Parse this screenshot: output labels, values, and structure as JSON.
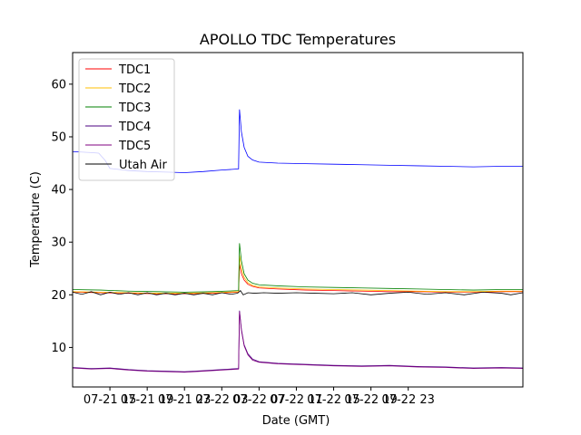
{
  "chart_data": {
    "type": "line",
    "title": "APOLLO TDC Temperatures",
    "xlabel": "Date (GMT)",
    "ylabel": "Temperature (C)",
    "xlim": [
      11.0,
      59.3
    ],
    "ylim": [
      2.5,
      66.0
    ],
    "x_unit": "hours since 07-21 00 GMT",
    "x_ticks": [
      {
        "x": 15,
        "label": "07-21 15"
      },
      {
        "x": 19,
        "label": "07-21 19"
      },
      {
        "x": 23,
        "label": "07-21 23"
      },
      {
        "x": 27,
        "label": "07-22 03"
      },
      {
        "x": 31,
        "label": "07-22 07"
      },
      {
        "x": 35,
        "label": "07-22 11"
      },
      {
        "x": 39,
        "label": "07-22 15"
      },
      {
        "x": 43,
        "label": "07-22 19"
      },
      {
        "x": 47,
        "label": "07-22 23"
      }
    ],
    "y_ticks": [
      10,
      20,
      30,
      40,
      50,
      60
    ],
    "grid": false,
    "legend_position": "top-left",
    "series": [
      {
        "name": "TDC1",
        "color": "#ff0000",
        "x": [
          11.0,
          14,
          17,
          20,
          23,
          26,
          28.8,
          28.9,
          29.1,
          29.4,
          29.8,
          30.3,
          31,
          33,
          36,
          39,
          42,
          45,
          48,
          51,
          54,
          57,
          59.3
        ],
        "y": [
          20.5,
          20.4,
          20.3,
          20.2,
          20.2,
          20.3,
          20.5,
          25.8,
          24.0,
          22.8,
          22.0,
          21.6,
          21.3,
          21.1,
          20.9,
          20.8,
          20.7,
          20.6,
          20.6,
          20.5,
          20.5,
          20.6,
          20.6
        ]
      },
      {
        "name": "TDC2",
        "color": "#ffbf00",
        "x": [
          11.0,
          14,
          17,
          20,
          23,
          26,
          28.8,
          28.9,
          29.1,
          29.4,
          29.8,
          30.3,
          31,
          33,
          36,
          39,
          42,
          45,
          48,
          51,
          54,
          57,
          59.3
        ],
        "y": [
          20.6,
          20.5,
          20.4,
          20.3,
          20.3,
          20.4,
          20.6,
          27.5,
          25.0,
          23.3,
          22.3,
          21.8,
          21.5,
          21.3,
          21.1,
          21.0,
          20.9,
          20.8,
          20.7,
          20.6,
          20.6,
          20.7,
          20.7
        ]
      },
      {
        "name": "TDC3",
        "color": "#008000",
        "x": [
          11.0,
          14,
          17,
          20,
          23,
          26,
          28.8,
          28.9,
          29.1,
          29.4,
          29.8,
          30.3,
          31,
          33,
          36,
          39,
          42,
          45,
          48,
          51,
          54,
          57,
          59.3
        ],
        "y": [
          21.0,
          20.9,
          20.7,
          20.6,
          20.5,
          20.6,
          20.8,
          29.8,
          26.5,
          24.0,
          22.8,
          22.2,
          21.9,
          21.7,
          21.5,
          21.4,
          21.3,
          21.2,
          21.1,
          21.0,
          20.9,
          21.0,
          21.0
        ]
      },
      {
        "name": "TDC4",
        "color": "#4b0082",
        "x": [
          11.0,
          13,
          15,
          17,
          19,
          21,
          23,
          25,
          27,
          28.8,
          28.9,
          29.1,
          29.4,
          29.8,
          30.3,
          31,
          33,
          36,
          39,
          42,
          45,
          48,
          51,
          54,
          57,
          59.3
        ],
        "y": [
          6.2,
          6.0,
          6.1,
          5.8,
          5.6,
          5.5,
          5.4,
          5.6,
          5.8,
          6.0,
          17.0,
          13.5,
          10.5,
          8.8,
          7.8,
          7.3,
          7.0,
          6.8,
          6.6,
          6.5,
          6.6,
          6.4,
          6.3,
          6.1,
          6.2,
          6.1
        ]
      },
      {
        "name": "TDC5",
        "color": "#800080",
        "x": [
          11.0,
          13,
          15,
          17,
          19,
          21,
          23,
          25,
          27,
          28.8,
          28.9,
          29.1,
          29.4,
          29.8,
          30.3,
          31,
          33,
          36,
          39,
          42,
          45,
          48,
          51,
          54,
          57,
          59.3
        ],
        "y": [
          6.1,
          5.9,
          6.0,
          5.7,
          5.5,
          5.4,
          5.3,
          5.5,
          5.7,
          5.9,
          16.8,
          13.3,
          10.3,
          8.6,
          7.6,
          7.2,
          6.9,
          6.7,
          6.5,
          6.4,
          6.5,
          6.3,
          6.2,
          6.0,
          6.1,
          6.0
        ]
      },
      {
        "name": "Utah Air",
        "color": "#000000",
        "x": [
          11.0,
          12,
          13,
          14,
          15,
          16,
          17,
          18,
          19,
          20,
          21,
          22,
          23,
          24,
          25,
          26,
          27,
          28,
          28.7,
          29.0,
          29.3,
          29.8,
          30.5,
          31.5,
          33,
          35,
          37,
          39,
          41,
          43,
          45,
          47,
          49,
          51,
          53,
          55,
          57,
          58,
          59.3
        ],
        "y": [
          20.5,
          20.1,
          20.6,
          20.0,
          20.5,
          20.1,
          20.4,
          20.0,
          20.4,
          20.0,
          20.3,
          20.0,
          20.3,
          20.0,
          20.3,
          20.0,
          20.4,
          20.1,
          20.3,
          20.8,
          20.0,
          20.4,
          20.3,
          20.4,
          20.3,
          20.4,
          20.3,
          20.2,
          20.4,
          20.0,
          20.3,
          20.5,
          20.1,
          20.4,
          20.0,
          20.5,
          20.3,
          20.0,
          20.4
        ]
      },
      {
        "name": "(blue)",
        "color": "#0000ff",
        "in_legend": false,
        "x": [
          11.0,
          13,
          13.8,
          14.5,
          15,
          17,
          19,
          21,
          23,
          25,
          27,
          28.8,
          28.9,
          29.1,
          29.4,
          29.8,
          30.3,
          31,
          33,
          36,
          39,
          42,
          45,
          48,
          51,
          54,
          57,
          59.3
        ],
        "y": [
          47.2,
          47.0,
          46.9,
          45.5,
          44.0,
          43.6,
          43.4,
          43.3,
          43.2,
          43.4,
          43.7,
          43.9,
          55.2,
          51.0,
          48.0,
          46.3,
          45.6,
          45.2,
          45.0,
          44.9,
          44.8,
          44.7,
          44.6,
          44.5,
          44.4,
          44.3,
          44.4,
          44.4
        ]
      }
    ]
  }
}
